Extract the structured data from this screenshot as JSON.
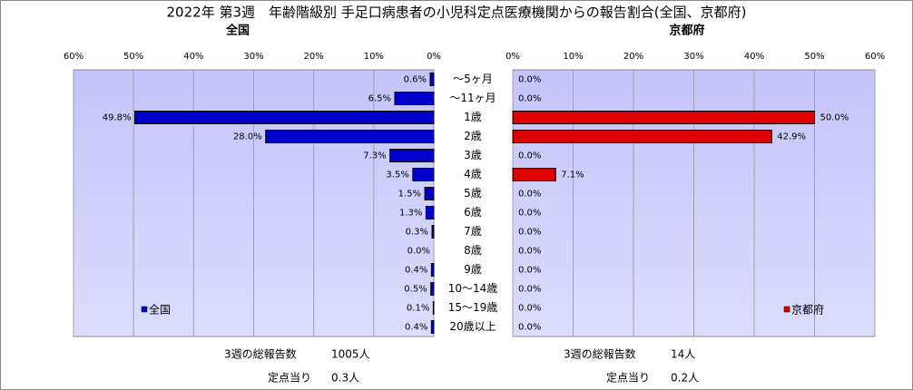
{
  "title": "2022年 第3週　年齢階級別 手足口病患者の小児科定点医療機関からの報告割合(全国、京都府)",
  "chart_data": [
    {
      "type": "bar",
      "subtitle": "全国",
      "categories": [
        "～5ヶ月",
        "～11ヶ月",
        "1歳",
        "2歳",
        "3歳",
        "4歳",
        "5歳",
        "6歳",
        "7歳",
        "8歳",
        "9歳",
        "10～14歳",
        "15～19歳",
        "20歳以上"
      ],
      "series": [
        {
          "name": "全国",
          "color": "#0000cc",
          "values": [
            0.6,
            6.5,
            49.8,
            28.0,
            7.3,
            3.5,
            1.5,
            1.3,
            0.3,
            0.0,
            0.4,
            0.5,
            0.1,
            0.4
          ],
          "value_labels": [
            "0.6%",
            "6.5%",
            "49.8%",
            "28.0%",
            "7.3%",
            "3.5%",
            "1.5%",
            "1.3%",
            "0.3%",
            "0.0%",
            "0.4%",
            "0.5%",
            "0.1%",
            "0.4%"
          ]
        }
      ],
      "xlim": [
        0,
        60
      ],
      "reversed": true,
      "xticks": [
        {
          "value": 0,
          "label": "0%"
        },
        {
          "value": 10,
          "label": "10%"
        },
        {
          "value": 20,
          "label": "20%"
        },
        {
          "value": 30,
          "label": "30%"
        },
        {
          "value": 40,
          "label": "40%"
        },
        {
          "value": 50,
          "label": "50%"
        },
        {
          "value": 60,
          "label": "60%"
        }
      ],
      "grid": true,
      "legend": "lower left",
      "footer": [
        {
          "label": "3週の総報告数",
          "value": "1005人"
        },
        {
          "label": "定点当り",
          "value": "0.3人"
        }
      ]
    },
    {
      "type": "bar",
      "subtitle": "京都府",
      "series": [
        {
          "name": "京都府",
          "color": "#dd0000",
          "values": [
            0.0,
            0.0,
            50.0,
            42.9,
            0.0,
            7.1,
            0.0,
            0.0,
            0.0,
            0.0,
            0.0,
            0.0,
            0.0,
            0.0
          ],
          "value_labels": [
            "0.0%",
            "0.0%",
            "50.0%",
            "42.9%",
            "0.0%",
            "7.1%",
            "0.0%",
            "0.0%",
            "0.0%",
            "0.0%",
            "0.0%",
            "0.0%",
            "0.0%",
            "0.0%"
          ]
        }
      ],
      "xlim": [
        0,
        60
      ],
      "reversed": false,
      "xticks": [
        {
          "value": 0,
          "label": "0%"
        },
        {
          "value": 10,
          "label": "10%"
        },
        {
          "value": 20,
          "label": "20%"
        },
        {
          "value": 30,
          "label": "30%"
        },
        {
          "value": 40,
          "label": "40%"
        },
        {
          "value": 50,
          "label": "50%"
        },
        {
          "value": 60,
          "label": "60%"
        }
      ],
      "grid": true,
      "legend": "lower right",
      "footer": [
        {
          "label": "3週の総報告数",
          "value": "14人"
        },
        {
          "label": "定点当り",
          "value": "0.2人"
        }
      ]
    }
  ]
}
